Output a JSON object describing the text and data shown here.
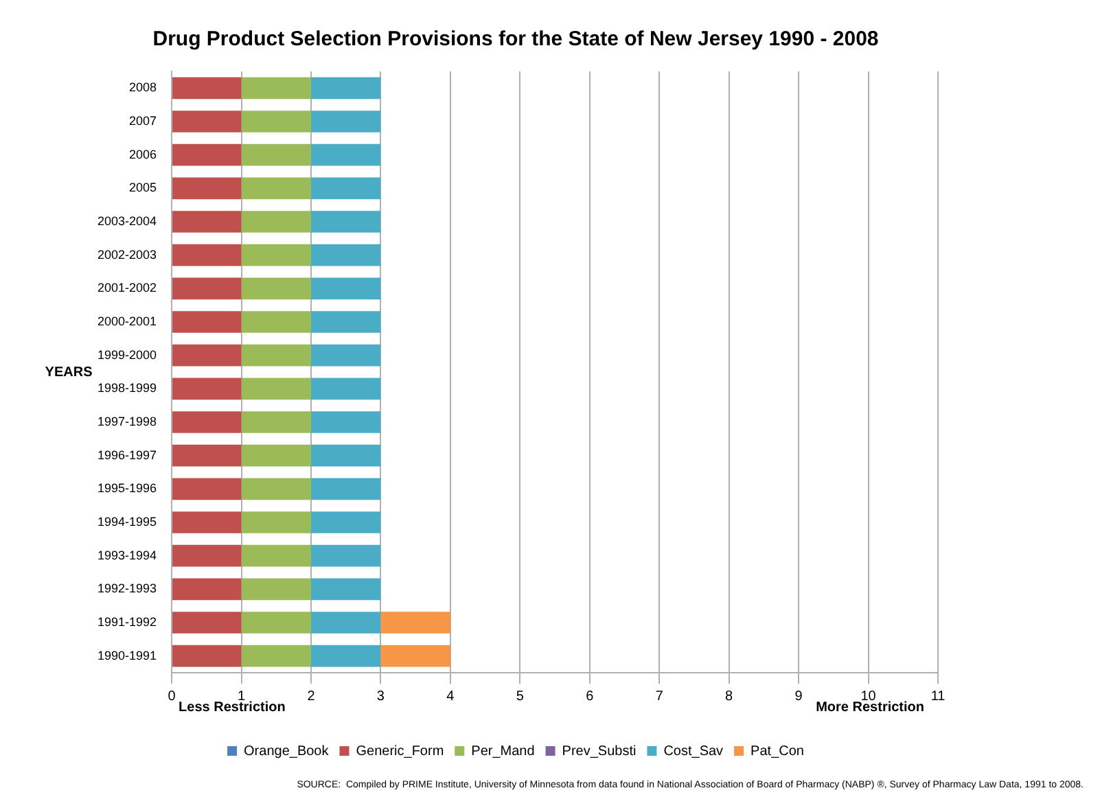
{
  "chart_data": {
    "type": "bar",
    "orientation": "horizontal",
    "stacked": true,
    "title": "Drug Product Selection Provisions for the State of New Jersey 1990 - 2008",
    "ylabel": "YEARS",
    "categories": [
      "2008",
      "2007",
      "2006",
      "2005",
      "2003-2004",
      "2002-2003",
      "2001-2002",
      "2000-2001",
      "1999-2000",
      "1998-1999",
      "1997-1998",
      "1996-1997",
      "1995-1996",
      "1994-1995",
      "1993-1994",
      "1992-1993",
      "1991-1992",
      "1990-1991"
    ],
    "series": [
      {
        "name": "Orange_Book",
        "color": "#4f81bd",
        "values": [
          0,
          0,
          0,
          0,
          0,
          0,
          0,
          0,
          0,
          0,
          0,
          0,
          0,
          0,
          0,
          0,
          0,
          0
        ]
      },
      {
        "name": "Generic_Form",
        "color": "#c0504d",
        "values": [
          1,
          1,
          1,
          1,
          1,
          1,
          1,
          1,
          1,
          1,
          1,
          1,
          1,
          1,
          1,
          1,
          1,
          1
        ]
      },
      {
        "name": "Per_Mand",
        "color": "#9bbb59",
        "values": [
          1,
          1,
          1,
          1,
          1,
          1,
          1,
          1,
          1,
          1,
          1,
          1,
          1,
          1,
          1,
          1,
          1,
          1
        ]
      },
      {
        "name": "Prev_Substi",
        "color": "#8064a2",
        "values": [
          0,
          0,
          0,
          0,
          0,
          0,
          0,
          0,
          0,
          0,
          0,
          0,
          0,
          0,
          0,
          0,
          0,
          0
        ]
      },
      {
        "name": "Cost_Sav",
        "color": "#4bacc6",
        "values": [
          1,
          1,
          1,
          1,
          1,
          1,
          1,
          1,
          1,
          1,
          1,
          1,
          1,
          1,
          1,
          1,
          1,
          1
        ]
      },
      {
        "name": "Pat_Con",
        "color": "#f79646",
        "values": [
          0,
          0,
          0,
          0,
          0,
          0,
          0,
          0,
          0,
          0,
          0,
          0,
          0,
          0,
          0,
          0,
          1,
          1
        ]
      }
    ],
    "xlim": [
      0,
      11
    ],
    "xticks": [
      0,
      1,
      2,
      3,
      4,
      5,
      6,
      7,
      8,
      9,
      10,
      11
    ],
    "grid": "x",
    "legend": "bottom",
    "annotations": [
      "Less Restriction",
      "More Restriction",
      "SOURCE:  Compiled by PRIME Institute, University of Minnesota from data found in National Association of Board of Pharmacy (NABP) ®, Survey of Pharmacy Law Data, 1991 to 2008."
    ]
  }
}
